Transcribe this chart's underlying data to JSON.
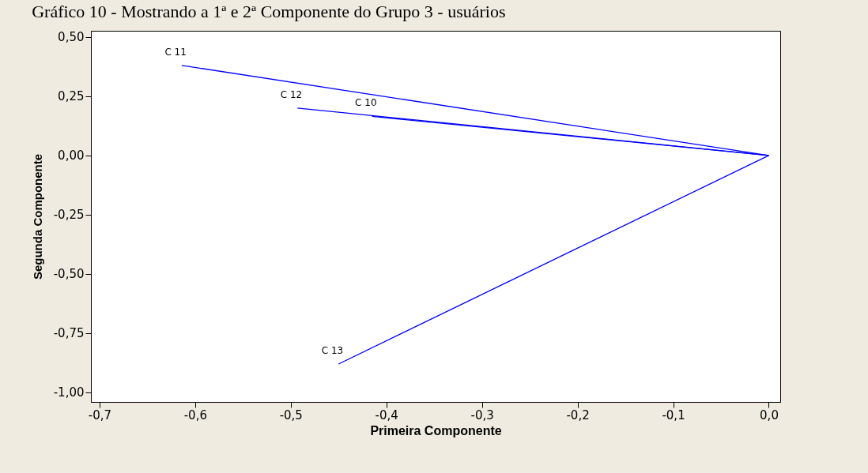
{
  "chart_data": {
    "type": "line",
    "title": "Gráfico 10 - Mostrando a 1ª e 2ª Componente do Grupo 3 - usuários",
    "xlabel": "Primeira Componente",
    "ylabel": "Segunda Componente",
    "series": [
      {
        "name": "C 11",
        "color": "#0000ff",
        "x": [
          0,
          -0.614
        ],
        "values": [
          0,
          0.38
        ]
      },
      {
        "name": "C 12",
        "color": "#0000ff",
        "x": [
          0,
          -0.493
        ],
        "values": [
          0,
          0.2
        ]
      },
      {
        "name": "C 10",
        "color": "#0000ff",
        "x": [
          0,
          -0.415
        ],
        "values": [
          0,
          0.165
        ]
      },
      {
        "name": "C 13",
        "color": "#0000ff",
        "x": [
          0,
          -0.45
        ],
        "values": [
          0,
          -0.88
        ]
      }
    ],
    "xlim": [
      -0.709,
      0.012
    ],
    "ylim": [
      -1.04,
      0.526
    ],
    "xticks": [
      {
        "value": -0.7,
        "label": "-0,7"
      },
      {
        "value": -0.6,
        "label": "-0,6"
      },
      {
        "value": -0.5,
        "label": "-0,5"
      },
      {
        "value": -0.4,
        "label": "-0,4"
      },
      {
        "value": -0.3,
        "label": "-0,3"
      },
      {
        "value": -0.2,
        "label": "-0,2"
      },
      {
        "value": -0.1,
        "label": "-0,1"
      },
      {
        "value": 0,
        "label": "0,0"
      }
    ],
    "yticks": [
      {
        "value": 0.5,
        "label": "0,50"
      },
      {
        "value": 0.25,
        "label": "0,25"
      },
      {
        "value": 0,
        "label": "0,00"
      },
      {
        "value": -0.25,
        "label": "-0,25"
      },
      {
        "value": -0.5,
        "label": "-0,50"
      },
      {
        "value": -0.75,
        "label": "-0,75"
      },
      {
        "value": -1,
        "label": "-1,00"
      }
    ],
    "grid": false,
    "legend": false,
    "marker": "none",
    "line_style": "solid"
  }
}
